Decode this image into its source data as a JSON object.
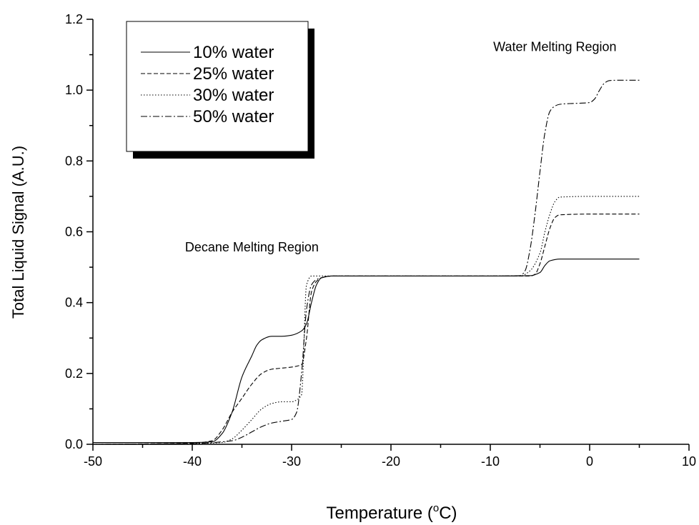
{
  "chart_data": {
    "type": "line",
    "xlabel": "Temperature (°C)",
    "xlabel_parts": [
      "Temperature (",
      "o",
      "C)"
    ],
    "ylabel": "Total Liquid Signal (A.U.)",
    "xlim": [
      -50,
      10
    ],
    "ylim": [
      0.0,
      1.2
    ],
    "xticks": [
      -50,
      -40,
      -30,
      -20,
      -10,
      0,
      10
    ],
    "xtick_labels": [
      "-50",
      "-40",
      "-30",
      "-20",
      "-10",
      "0",
      "10"
    ],
    "yticks": [
      0.0,
      0.2,
      0.4,
      0.6,
      0.8,
      1.0,
      1.2
    ],
    "ytick_labels": [
      "0.0",
      "0.2",
      "0.4",
      "0.6",
      "0.8",
      "1.0",
      "1.2"
    ],
    "grid": false,
    "legend_position": "top-left",
    "annotations": [
      {
        "text": "Water Melting Region",
        "x": -3.5,
        "y": 1.11
      },
      {
        "text": "Decane Melting Region",
        "x": -34,
        "y": 0.545
      }
    ],
    "series": [
      {
        "name": "10% water",
        "dash": "solid",
        "x": [
          -50,
          -40,
          -38,
          -37,
          -36,
          -35,
          -34,
          -33.5,
          -33,
          -32,
          -31,
          -30,
          -29,
          -28.5,
          -28,
          -27.5,
          -27,
          -26,
          -20,
          -10,
          -6,
          -5,
          -4.5,
          -4,
          -3,
          0,
          5
        ],
        "y": [
          0.005,
          0.005,
          0.007,
          0.03,
          0.09,
          0.19,
          0.25,
          0.28,
          0.295,
          0.305,
          0.305,
          0.308,
          0.32,
          0.34,
          0.4,
          0.45,
          0.47,
          0.475,
          0.475,
          0.475,
          0.476,
          0.485,
          0.505,
          0.518,
          0.523,
          0.523,
          0.523
        ]
      },
      {
        "name": "25% water",
        "dash": "dashed",
        "x": [
          -50,
          -40,
          -38,
          -37,
          -36,
          -35,
          -34,
          -33,
          -32,
          -31,
          -30,
          -29,
          -28.5,
          -28,
          -27.5,
          -27,
          -26,
          -20,
          -10,
          -6,
          -5.5,
          -5,
          -4.5,
          -4,
          -3.5,
          -3,
          0,
          5
        ],
        "y": [
          0.0,
          0.003,
          0.01,
          0.04,
          0.09,
          0.13,
          0.17,
          0.2,
          0.212,
          0.215,
          0.218,
          0.225,
          0.3,
          0.43,
          0.46,
          0.47,
          0.475,
          0.475,
          0.475,
          0.475,
          0.48,
          0.51,
          0.56,
          0.61,
          0.64,
          0.648,
          0.65,
          0.65
        ]
      },
      {
        "name": "30% water",
        "dash": "dotted",
        "x": [
          -50,
          -40,
          -37,
          -36,
          -35,
          -34,
          -33,
          -32,
          -31,
          -30,
          -29.5,
          -29,
          -28.5,
          -28,
          -27.5,
          -27,
          -26,
          -20,
          -10,
          -7,
          -6,
          -5,
          -4.5,
          -4,
          -3.5,
          -3,
          0,
          5
        ],
        "y": [
          0.0,
          0.002,
          0.005,
          0.015,
          0.04,
          0.07,
          0.1,
          0.115,
          0.12,
          0.12,
          0.125,
          0.14,
          0.45,
          0.475,
          0.475,
          0.475,
          0.475,
          0.475,
          0.475,
          0.475,
          0.49,
          0.54,
          0.6,
          0.65,
          0.685,
          0.698,
          0.7,
          0.7
        ]
      },
      {
        "name": "50% water",
        "dash": "dashdot",
        "x": [
          -50,
          -40,
          -36,
          -35,
          -34,
          -33,
          -32,
          -31,
          -30,
          -29.5,
          -29,
          -28.5,
          -28,
          -27.5,
          -27,
          -26,
          -20,
          -10,
          -7,
          -6.5,
          -6,
          -5.5,
          -5,
          -4.5,
          -4,
          -3.5,
          -3,
          -2,
          -1,
          0,
          0.5,
          1,
          1.5,
          2,
          3,
          5
        ],
        "y": [
          0.0,
          0.002,
          0.01,
          0.02,
          0.035,
          0.05,
          0.06,
          0.065,
          0.07,
          0.09,
          0.2,
          0.38,
          0.45,
          0.465,
          0.47,
          0.475,
          0.475,
          0.475,
          0.476,
          0.49,
          0.55,
          0.65,
          0.77,
          0.88,
          0.94,
          0.955,
          0.96,
          0.962,
          0.963,
          0.965,
          0.975,
          1.0,
          1.02,
          1.027,
          1.028,
          1.028
        ]
      }
    ]
  }
}
